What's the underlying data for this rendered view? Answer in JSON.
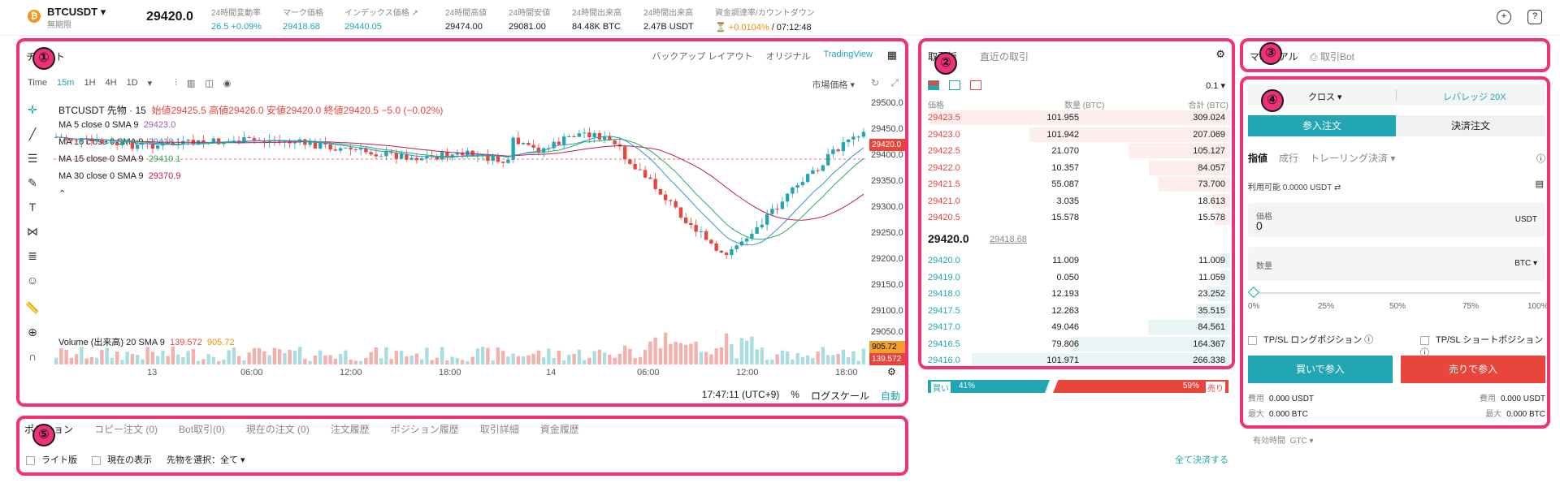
{
  "header": {
    "symbol": "BTCUSDT",
    "symbol_sub": "無期限",
    "last_price": "29420.0",
    "stats": [
      {
        "label": "24時間変動率",
        "value": "26.5 +0.09%",
        "color": "#22a6b3"
      },
      {
        "label": "マーク価格",
        "value": "29418.68",
        "color": "#22a6b3"
      },
      {
        "label": "インデックス価格",
        "value": "29440.05",
        "color": "#22a6b3"
      },
      {
        "label": "24時間高値",
        "value": "29474.00",
        "color": "#1a1a1a"
      },
      {
        "label": "24時間安値",
        "value": "29081.00",
        "color": "#1a1a1a"
      },
      {
        "label": "24時間出来高",
        "value": "84.48K BTC",
        "color": "#1a1a1a"
      },
      {
        "label": "24時間出来高",
        "value": "2.47B USDT",
        "color": "#1a1a1a"
      }
    ],
    "funding_label": "資金調達率/カウントダウン",
    "funding_rate": "+0.0104%",
    "funding_countdown": "/ 07:12:48"
  },
  "chart": {
    "title": "チャート",
    "views": [
      "バックアップ レイアウト",
      "オリジナル",
      "TradingView"
    ],
    "timeframes": [
      "Time",
      "15m",
      "1H",
      "4H",
      "1D"
    ],
    "price_type": "市場価格",
    "ohlc_title": "BTCUSDT 先物 · 15",
    "ohlc": "始値29425.5 高値29426.0 安値29420.0 終値29420.5 −5.0 (−0.02%)",
    "ma": [
      {
        "label": "MA 5 close 0 SMA 9",
        "value": "29423.0",
        "color": "#9b59b6"
      },
      {
        "label": "MA 10 close 0 SMA 9",
        "value": "29418.1",
        "color": "#3b8fd6"
      },
      {
        "label": "MA 15 close 0 SMA 9",
        "value": "29410.1",
        "color": "#27ae60"
      },
      {
        "label": "MA 30 close 0 SMA 9",
        "value": "29370.9",
        "color": "#c2185b"
      }
    ],
    "volume_label": "Volume (出来高) 20 SMA 9",
    "volume_v1": "139.572",
    "volume_v2": "905.72",
    "price_ticks": [
      "29500.0",
      "29450.0",
      "29400.0",
      "29350.0",
      "29300.0",
      "29250.0",
      "29200.0",
      "29150.0",
      "29100.0",
      "29050.0"
    ],
    "current_price_tag": "29420.0",
    "vol_tag1": "905.72",
    "vol_tag2": "139.572",
    "time_ticks": [
      "13",
      "06:00",
      "12:00",
      "18:00",
      "14",
      "06:00",
      "12:00",
      "18:00"
    ],
    "footer_time": "17:47:11 (UTC+9)",
    "footer_pct": "%",
    "footer_log": "ログスケール",
    "footer_auto": "自動"
  },
  "orderbook": {
    "tabs": [
      "取引板",
      "直近の取引"
    ],
    "tick_size": "0.1",
    "headers": [
      "価格",
      "数量 (BTC)",
      "合計 (BTC)"
    ],
    "asks": [
      {
        "price": "29423.5",
        "qty": "101.955",
        "total": "309.024"
      },
      {
        "price": "29423.0",
        "qty": "101.942",
        "total": "207.069"
      },
      {
        "price": "29422.5",
        "qty": "21.070",
        "total": "105.127"
      },
      {
        "price": "29422.0",
        "qty": "10.357",
        "total": "84.057"
      },
      {
        "price": "29421.5",
        "qty": "55.087",
        "total": "73.700"
      },
      {
        "price": "29421.0",
        "qty": "3.035",
        "total": "18.613"
      },
      {
        "price": "29420.5",
        "qty": "15.578",
        "total": "15.578"
      }
    ],
    "mid_price": "29420.0",
    "mid_mark": "29418.68",
    "bids": [
      {
        "price": "29420.0",
        "qty": "11.009",
        "total": "11.009"
      },
      {
        "price": "29419.0",
        "qty": "0.050",
        "total": "11.059"
      },
      {
        "price": "29418.0",
        "qty": "12.193",
        "total": "23.252"
      },
      {
        "price": "29417.5",
        "qty": "12.263",
        "total": "35.515"
      },
      {
        "price": "29417.0",
        "qty": "49.046",
        "total": "84.561"
      },
      {
        "price": "29416.5",
        "qty": "79.806",
        "total": "164.367"
      },
      {
        "price": "29416.0",
        "qty": "101.971",
        "total": "266.338"
      }
    ],
    "buy_label": "買い",
    "buy_pct": "41%",
    "sell_pct": "59%",
    "sell_label": "売り"
  },
  "trade_tabs": {
    "manual": "マニュアル",
    "bot": "取引Bot"
  },
  "order": {
    "margin_mode": "クロス",
    "leverage": "レバレッジ 20X",
    "open_tab": "参入注文",
    "close_tab": "決済注文",
    "types": [
      "指値",
      "成行",
      "トレーリング決済"
    ],
    "available": "利用可能 0.0000 USDT",
    "price_label": "価格",
    "price_value": "0",
    "price_unit": "USDT",
    "qty_label": "数量",
    "qty_unit": "BTC",
    "slider_marks": [
      "0%",
      "25%",
      "50%",
      "75%",
      "100%"
    ],
    "tpsl_long": "TP/SL ロングポジション",
    "tpsl_short": "TP/SL ショートポジション",
    "buy_button": "買いで参入",
    "sell_button": "売りで参入",
    "cost_label": "費用",
    "cost_buy": "0.000 USDT",
    "cost_sell": "0.000 USDT",
    "max_label": "最大",
    "max_buy": "0.000 BTC",
    "max_sell": "0.000 BTC",
    "tif_label": "有効時間",
    "tif_value": "GTC"
  },
  "bottom": {
    "tabs": [
      "ポジション",
      "コピー注文 (0)",
      "Bot取引(0)",
      "現在の注文 (0)",
      "注文履歴",
      "ポジション履歴",
      "取引詳細",
      "資金履歴"
    ],
    "filters": {
      "lite": "ライト版",
      "current": "現在の表示",
      "contract": "先物を選択：全て"
    },
    "close_all": "全て決済する"
  },
  "callouts": [
    "①",
    "②",
    "③",
    "④",
    "⑤"
  ]
}
